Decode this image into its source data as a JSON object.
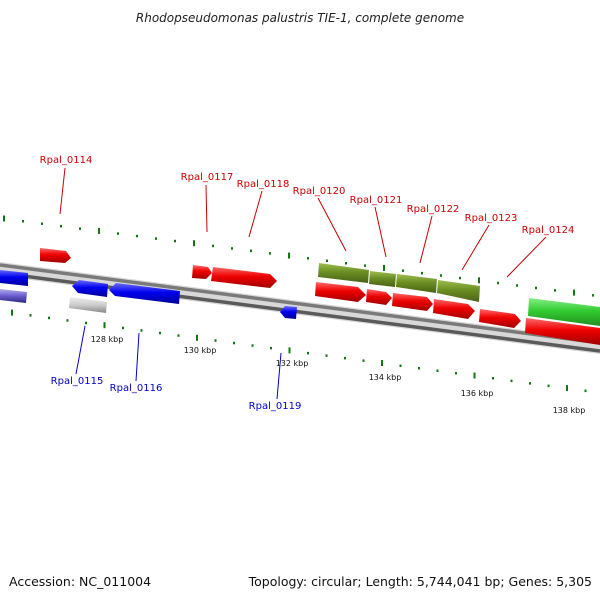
{
  "title": "Rhodopseudomonas palustris TIE-1, complete genome",
  "footer": {
    "accession": "Accession: NC_011004",
    "topology": "Topology: circular; Length: 5,744,041 bp; Genes: 5,305"
  },
  "colors": {
    "forward": "#ee0000",
    "reverse": "#0000ee",
    "olive": "#6b8e23",
    "green": "#33cc33",
    "grey": "#bbbbbb",
    "tick": "#117711",
    "label_top": "#cc0000",
    "label_bottom": "#0000cc",
    "backbone": "#888888"
  },
  "kbp_labels": [
    "128 kbp",
    "130 kbp",
    "132 kbp",
    "134 kbp",
    "136 kbp",
    "138 kbp"
  ],
  "genes_forward": [
    {
      "id": "Rpal_0114",
      "color": "forward"
    },
    {
      "id": "Rpal_0117",
      "color": "forward"
    },
    {
      "id": "Rpal_0118",
      "color": "forward"
    },
    {
      "id": "Rpal_0120",
      "color": "forward"
    },
    {
      "id": "Rpal_0121",
      "color": "forward"
    },
    {
      "id": "Rpal_0122",
      "color": "forward"
    },
    {
      "id": "Rpal_0123",
      "color": "forward"
    },
    {
      "id": "Rpal_0124",
      "color": "forward"
    }
  ],
  "genes_reverse": [
    {
      "id": "Rpal_0115",
      "color": "reverse"
    },
    {
      "id": "Rpal_0116",
      "color": "reverse"
    },
    {
      "id": "Rpal_0119",
      "color": "reverse"
    }
  ]
}
